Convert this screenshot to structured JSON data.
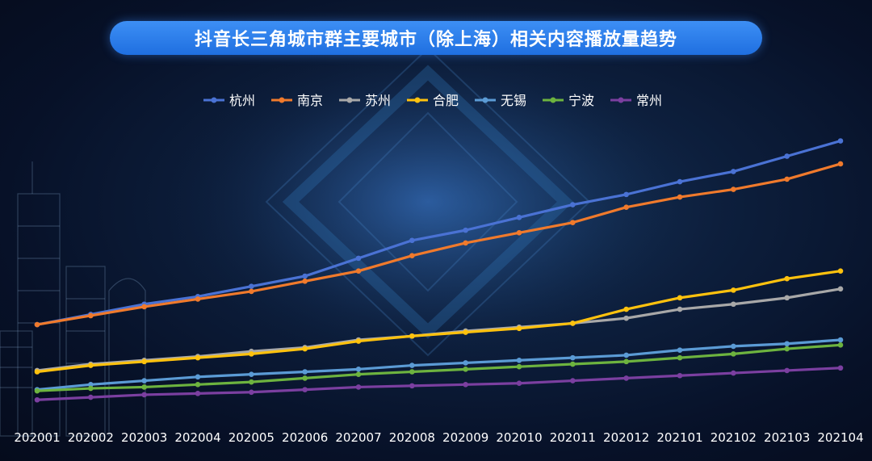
{
  "chart_data": {
    "type": "line",
    "title": "抖音长三角城市群主要城市（除上海）相关内容播放量趋势",
    "xlabel": "",
    "ylabel": "",
    "categories": [
      "202001",
      "202002",
      "202003",
      "202004",
      "202005",
      "202006",
      "202007",
      "202008",
      "202009",
      "202010",
      "202011",
      "202012",
      "202101",
      "202102",
      "202103",
      "202104"
    ],
    "ylim": [
      0,
      100
    ],
    "grid": false,
    "legend_position": "top-center",
    "series": [
      {
        "name": "杭州",
        "color": "#4a72d4",
        "values": [
          31,
          35,
          39,
          42,
          46,
          50,
          57,
          64,
          68,
          73,
          78,
          82,
          87,
          91,
          97,
          103
        ]
      },
      {
        "name": "南京",
        "color": "#f07a2c",
        "values": [
          31,
          34.5,
          38,
          41,
          44,
          48,
          52,
          58,
          63,
          67,
          71,
          77,
          81,
          84,
          88,
          94
        ]
      },
      {
        "name": "苏州",
        "color": "#a8a8a8",
        "values": [
          13,
          15.5,
          17,
          18.5,
          20.5,
          22,
          25,
          26.5,
          28.5,
          30,
          31.5,
          33.5,
          37,
          39,
          41.5,
          45
        ]
      },
      {
        "name": "合肥",
        "color": "#ffc20e",
        "values": [
          12.5,
          15,
          16.5,
          18,
          19.5,
          21.5,
          24.5,
          26.5,
          28,
          29.5,
          31.5,
          37,
          41.5,
          44.5,
          49,
          52
        ]
      },
      {
        "name": "无锡",
        "color": "#5b9bd5",
        "values": [
          5.5,
          7.5,
          9,
          10.5,
          11.5,
          12.5,
          13.5,
          15,
          16,
          17,
          18,
          19,
          21,
          22.5,
          23.5,
          25
        ]
      },
      {
        "name": "宁波",
        "color": "#6db33f",
        "values": [
          5,
          6,
          6.5,
          7.5,
          8.5,
          10,
          11.5,
          12.5,
          13.5,
          14.5,
          15.5,
          16.5,
          18,
          19.5,
          21.5,
          23
        ]
      },
      {
        "name": "常州",
        "color": "#7b3fa0",
        "values": [
          1.5,
          2.5,
          3.5,
          4,
          4.5,
          5.5,
          6.5,
          7,
          7.5,
          8,
          9,
          10,
          11,
          12,
          13,
          14
        ]
      }
    ]
  }
}
